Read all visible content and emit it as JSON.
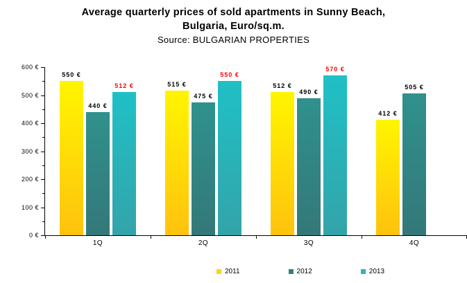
{
  "chart": {
    "title_line1": "Average quarterly prices of sold apartments in Sunny Beach,",
    "title_line2": "Bulgaria, Euro/sq.m.",
    "source": "Source: BULGARIAN PROPERTIES"
  },
  "chart_data": {
    "type": "bar",
    "title": "Average quarterly prices of sold apartments in Sunny Beach, Bulgaria, Euro/sq.m.",
    "subtitle": "Source: BULGARIAN PROPERTIES",
    "categories": [
      "1Q",
      "2Q",
      "3Q",
      "4Q"
    ],
    "series": [
      {
        "name": "2011",
        "values": [
          550,
          515,
          512,
          412
        ],
        "color_top": "#FFF500",
        "color_bottom": "#FFC20E",
        "legend_color": "#FFD21E",
        "label_color": "#000000"
      },
      {
        "name": "2012",
        "values": [
          440,
          475,
          490,
          505
        ],
        "color_top": "#2F918D",
        "color_bottom": "#347879",
        "legend_color": "#2E817E",
        "label_color": "#000000"
      },
      {
        "name": "2013",
        "values": [
          512,
          550,
          570,
          null
        ],
        "color_top": "#1FC0C6",
        "color_bottom": "#33A4A9",
        "legend_color": "#2FB5B9",
        "label_color": "#FF0000"
      }
    ],
    "value_suffix": " €",
    "ylim": [
      0,
      600
    ],
    "ytick_step": 100,
    "ytick_minor_step": 50,
    "ytick_suffix": " €",
    "legend_position": "bottom",
    "grid": false
  }
}
